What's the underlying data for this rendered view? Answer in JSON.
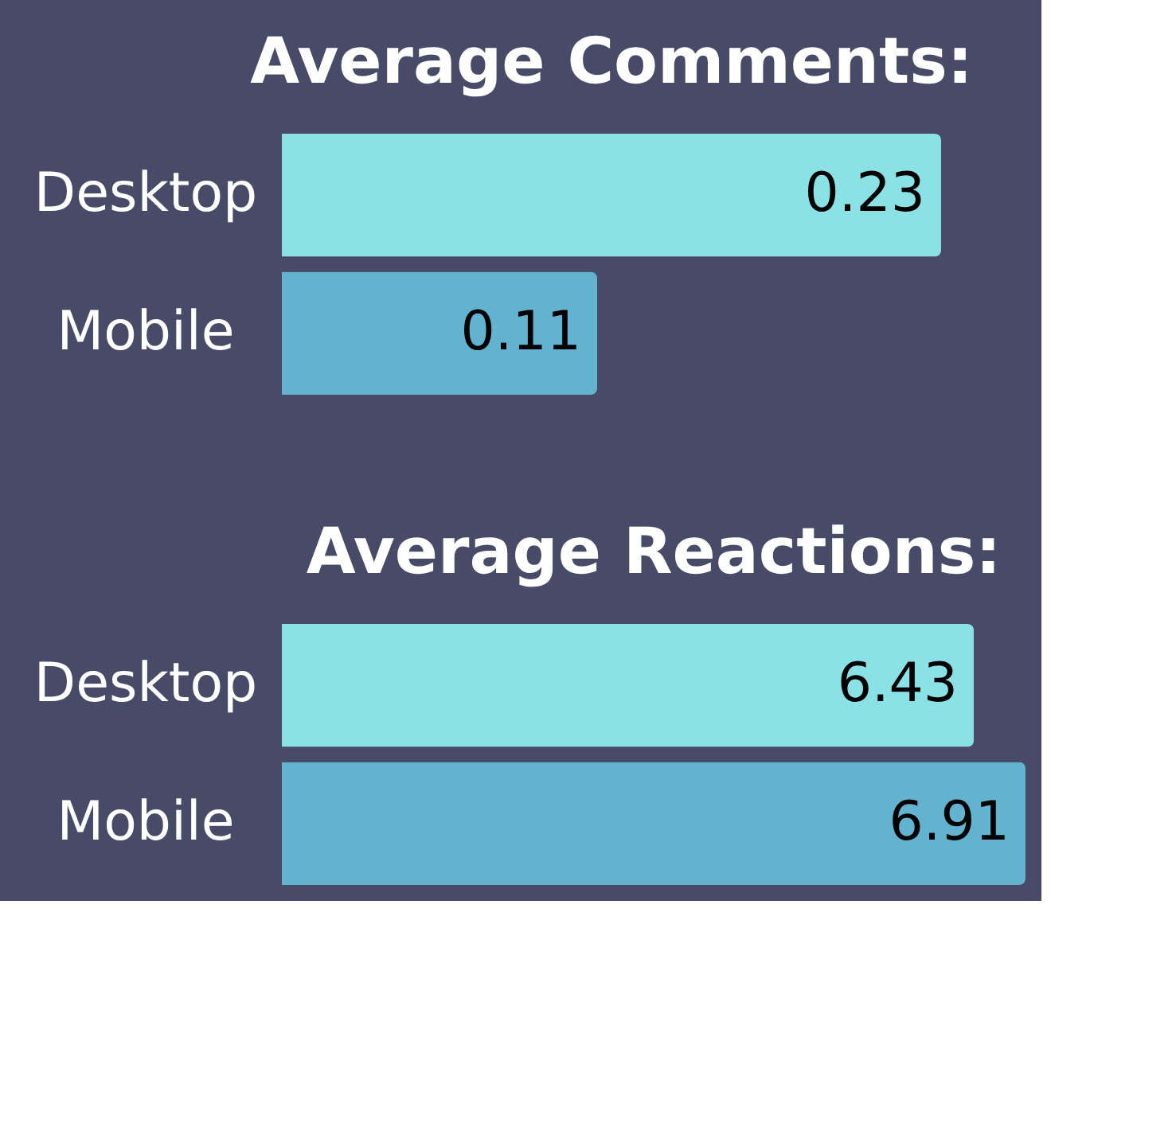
{
  "chart_data": [
    {
      "type": "bar",
      "orientation": "horizontal",
      "title": "Average Comments:",
      "categories": [
        "Desktop",
        "Mobile"
      ],
      "values": [
        0.23,
        0.11
      ],
      "colors": [
        "#8ae2e7",
        "#62b3d0"
      ],
      "data_labels": true
    },
    {
      "type": "bar",
      "orientation": "horizontal",
      "title": "Average Reactions:",
      "categories": [
        "Desktop",
        "Mobile"
      ],
      "values": [
        6.43,
        6.91
      ],
      "colors": [
        "#8ae2e7",
        "#62b3d0"
      ],
      "data_labels": true
    }
  ]
}
